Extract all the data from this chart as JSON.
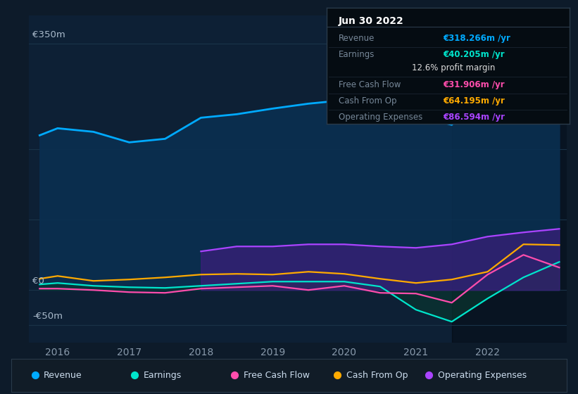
{
  "bg_color": "#0d1b2a",
  "plot_bg_color": "#0d2035",
  "grid_color": "#1a3348",
  "highlight_start": 2021.5,
  "years": [
    2015.75,
    2016.0,
    2016.5,
    2017.0,
    2017.5,
    2018.0,
    2018.5,
    2019.0,
    2019.5,
    2020.0,
    2020.5,
    2021.0,
    2021.5,
    2022.0,
    2022.5,
    2023.0
  ],
  "revenue": [
    220,
    230,
    225,
    210,
    215,
    245,
    250,
    258,
    265,
    270,
    265,
    248,
    235,
    295,
    360,
    318
  ],
  "earnings": [
    8,
    10,
    6,
    4,
    3,
    6,
    9,
    12,
    12,
    12,
    5,
    -28,
    -45,
    -12,
    18,
    40
  ],
  "fcf": [
    2,
    2,
    0,
    -3,
    -4,
    2,
    4,
    6,
    0,
    6,
    -4,
    -5,
    -18,
    22,
    50,
    32
  ],
  "cash_op": [
    16,
    20,
    13,
    15,
    18,
    22,
    23,
    22,
    26,
    23,
    16,
    10,
    15,
    26,
    65,
    64
  ],
  "op_exp": [
    0,
    0,
    0,
    0,
    0,
    55,
    62,
    62,
    65,
    65,
    62,
    60,
    65,
    76,
    82,
    87
  ],
  "revenue_color": "#00aaff",
  "earnings_color": "#00e5cc",
  "fcf_color": "#ff4dac",
  "cash_op_color": "#ffaa00",
  "op_exp_color": "#aa44ff",
  "revenue_fill": "#0a2f50",
  "earnings_fill": "#0a3530",
  "op_exp_fill": "#4a1a8a",
  "ylim": [
    -75,
    390
  ],
  "ytick_positions": [
    -50,
    0,
    350
  ],
  "ytick_labels": [
    "-€50m",
    "€0",
    "€350m"
  ],
  "xtick_years": [
    2016,
    2017,
    2018,
    2019,
    2020,
    2021,
    2022
  ],
  "xlim": [
    2015.6,
    2023.1
  ],
  "tooltip_title": "Jun 30 2022",
  "tooltip_rows": [
    {
      "label": "Revenue",
      "value": "€318.266m /yr",
      "color": "#00aaff",
      "divider": true
    },
    {
      "label": "Earnings",
      "value": "€40.205m /yr",
      "color": "#00e5cc",
      "divider": false
    },
    {
      "label": "",
      "value": "12.6% profit margin",
      "color": "#dddddd",
      "divider": true
    },
    {
      "label": "Free Cash Flow",
      "value": "€31.906m /yr",
      "color": "#ff4dac",
      "divider": true
    },
    {
      "label": "Cash From Op",
      "value": "€64.195m /yr",
      "color": "#ffaa00",
      "divider": true
    },
    {
      "label": "Operating Expenses",
      "value": "€86.594m /yr",
      "color": "#aa44ff",
      "divider": false
    }
  ],
  "legend_items": [
    {
      "label": "Revenue",
      "color": "#00aaff"
    },
    {
      "label": "Earnings",
      "color": "#00e5cc"
    },
    {
      "label": "Free Cash Flow",
      "color": "#ff4dac"
    },
    {
      "label": "Cash From Op",
      "color": "#ffaa00"
    },
    {
      "label": "Operating Expenses",
      "color": "#aa44ff"
    }
  ]
}
